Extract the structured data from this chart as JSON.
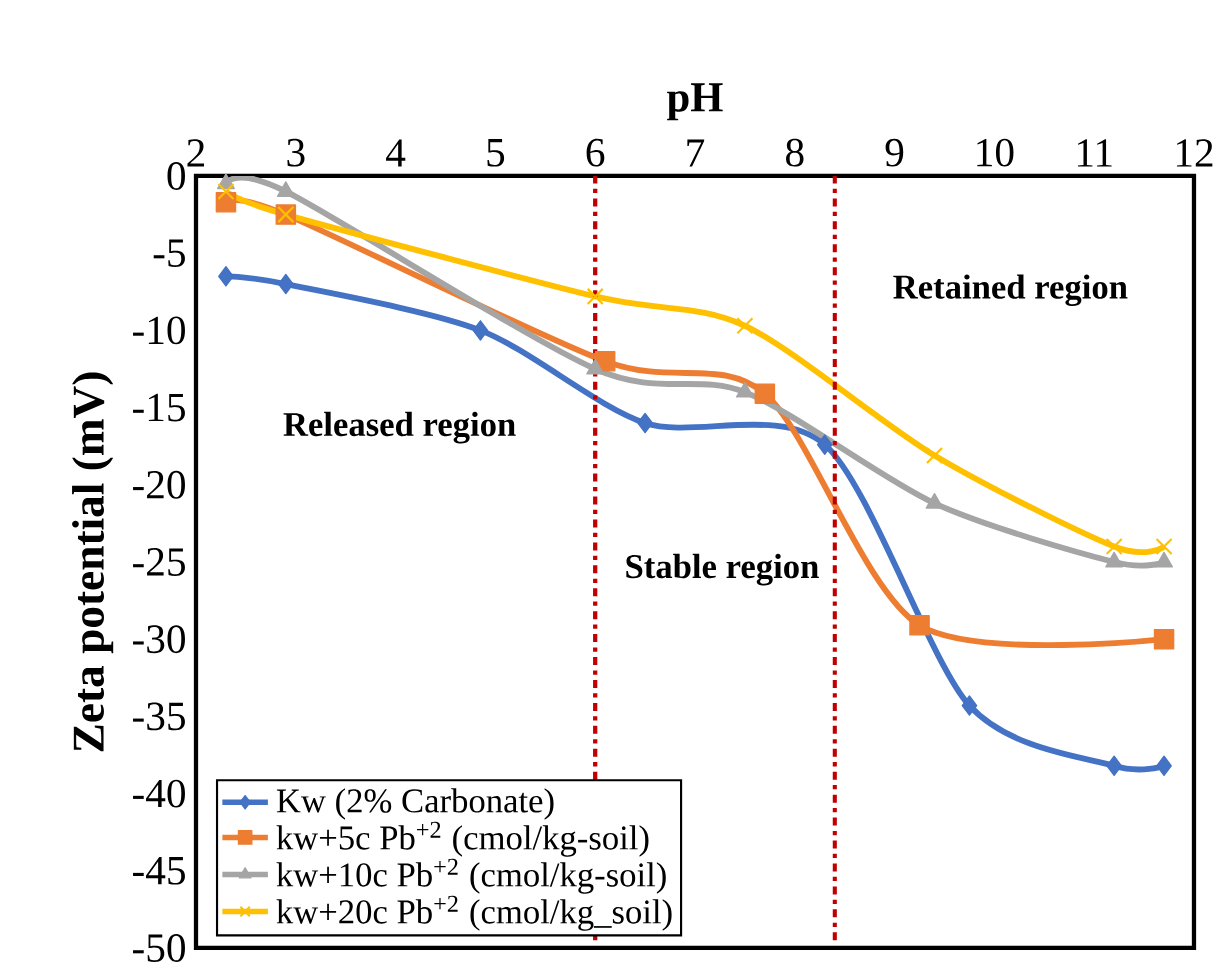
{
  "chart_data": {
    "type": "line",
    "xlabel": "pH",
    "ylabel": "Zeta potential (mV)",
    "xlim": [
      2,
      12
    ],
    "xticks": [
      2,
      3,
      4,
      5,
      6,
      7,
      8,
      9,
      10,
      11,
      12
    ],
    "ylim": [
      -50,
      0
    ],
    "yticks": [
      -50,
      -45,
      -40,
      -35,
      -30,
      -25,
      -20,
      -15,
      -10,
      -5,
      0
    ],
    "legend": "bottom left",
    "grid": false,
    "line_style": "solid",
    "series": [
      {
        "name": "Kw (2% Carbonate)",
        "color": "#4472c4",
        "marker": "diamond",
        "x": [
          2.3,
          2.9,
          4.85,
          6.5,
          8.3,
          9.75,
          11.2,
          11.7
        ],
        "values": [
          -6.5,
          -7,
          -10,
          -16,
          -17.4,
          -34.3,
          -38.2,
          -38.2
        ]
      },
      {
        "name": "kw+5c Pb$^{+2}$ (cmol/kg-soil)",
        "color": "#ed7d31",
        "marker": "square",
        "x": [
          2.3,
          2.9,
          6.1,
          7.7,
          9.25,
          11.7
        ],
        "values": [
          -1.7,
          -2.5,
          -12,
          -14.1,
          -29.1,
          -30
        ]
      },
      {
        "name": "kw+10c Pb$^{+2}$ (cmol/kg-soil)",
        "color": "#a5a5a5",
        "marker": "triangle",
        "x": [
          2.3,
          2.9,
          6.0,
          7.5,
          9.4,
          11.2,
          11.7
        ],
        "values": [
          -0.5,
          -1,
          -12.5,
          -14,
          -21.2,
          -25,
          -25
        ]
      },
      {
        "name": "kw+20c Pb$^{+2}$ (cmol/kg_soil)",
        "color": "#ffc000",
        "marker": "cross",
        "x": [
          2.3,
          2.9,
          6.0,
          7.5,
          9.4,
          11.2,
          11.7
        ],
        "values": [
          -1,
          -2.5,
          -7.8,
          -9.7,
          -18.1,
          -24,
          -24
        ]
      }
    ],
    "ref_lines": [
      {
        "axis": "x",
        "value": 6.0,
        "color": "#c00000",
        "line_style": "dashdot"
      },
      {
        "axis": "x",
        "value": 8.4,
        "color": "#c00000",
        "line_style": "dashdot"
      }
    ],
    "annotations": [
      "Released region",
      "Stable region",
      "Retained region"
    ]
  }
}
